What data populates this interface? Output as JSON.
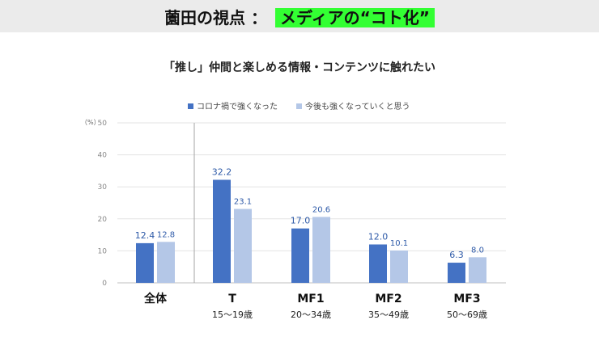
{
  "header": {
    "title_prefix": "薗田の視点 ：",
    "title_highlight": "メディアの“コト化”"
  },
  "chart_data": {
    "type": "bar",
    "title": "「推し」仲間と楽しめる情報・コンテンツに触れたい",
    "unit_label": "（%）",
    "categories": [
      "全体",
      "T",
      "MF1",
      "MF2",
      "MF3"
    ],
    "category_ages": [
      "",
      "15～19歳",
      "20～34歳",
      "35～49歳",
      "50～69歳"
    ],
    "series": [
      {
        "name": "コロナ禍で強くなった",
        "values": [
          12.4,
          32.2,
          17.0,
          12.0,
          6.3
        ],
        "labels": [
          "12.4",
          "32.2",
          "17.0",
          "12.0",
          "6.3"
        ],
        "color": "#4472c4"
      },
      {
        "name": "今後も強くなっていくと思う",
        "values": [
          12.8,
          23.1,
          20.6,
          10.1,
          8.0
        ],
        "labels": [
          "12.8",
          "23.1",
          "20.6",
          "10.1",
          "8.0"
        ],
        "color": "#b4c7e7"
      }
    ],
    "ylim": [
      0,
      50
    ],
    "yticks": [
      "0",
      "10",
      "20",
      "30",
      "40",
      "50"
    ],
    "grid": true,
    "legend": "top-center"
  }
}
